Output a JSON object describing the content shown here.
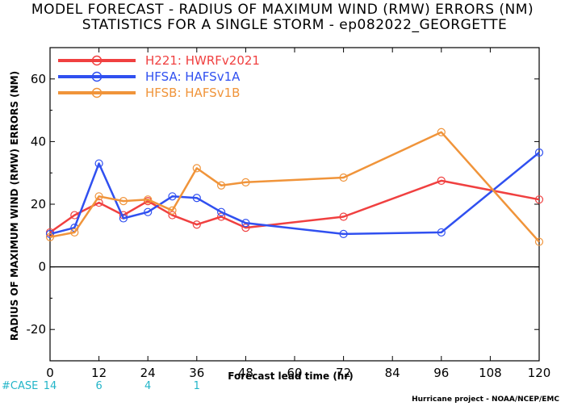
{
  "chart_data": {
    "type": "line",
    "title": "MODEL FORECAST - RADIUS OF MAXIMUM WIND (RMW) ERRORS (NM)",
    "subtitle": "STATISTICS FOR A SINGLE STORM - ep082022_GEORGETTE",
    "xlabel": "Forecast lead time (hr)",
    "ylabel": "RADIUS OF MAXIMUM WIND (RMW) ERRORS (NM)",
    "xlim": [
      0,
      120
    ],
    "ylim": [
      -30,
      70
    ],
    "xticks": [
      0,
      12,
      24,
      36,
      48,
      60,
      72,
      84,
      96,
      108,
      120
    ],
    "yticks": [
      -20,
      0,
      20,
      40,
      60
    ],
    "legend_position": "top-left",
    "grid": false,
    "series": [
      {
        "name": "H221: HWRFv2021",
        "color": "#f04040",
        "points": [
          [
            0,
            11
          ],
          [
            6,
            16.5
          ],
          [
            12,
            20.5
          ],
          [
            18,
            16.5
          ],
          [
            24,
            21
          ],
          [
            30,
            16.5
          ],
          [
            36,
            13.5
          ],
          [
            42,
            16
          ],
          [
            48,
            12.5
          ],
          [
            72,
            16
          ],
          [
            96,
            27.5
          ],
          [
            120,
            21.5
          ]
        ]
      },
      {
        "name": "HFSA: HAFSv1A",
        "color": "#3050f0",
        "points": [
          [
            0,
            10.5
          ],
          [
            6,
            12.5
          ],
          [
            12,
            33
          ],
          [
            18,
            15.5
          ],
          [
            24,
            17.5
          ],
          [
            30,
            22.5
          ],
          [
            36,
            22
          ],
          [
            42,
            17.5
          ],
          [
            48,
            14
          ],
          [
            72,
            10.5
          ],
          [
            96,
            11
          ],
          [
            120,
            36.5
          ]
        ]
      },
      {
        "name": "HFSB: HAFSv1B",
        "color": "#f0943a",
        "points": [
          [
            0,
            9.5
          ],
          [
            6,
            11
          ],
          [
            12,
            22.5
          ],
          [
            18,
            21
          ],
          [
            24,
            21.5
          ],
          [
            30,
            18
          ],
          [
            36,
            31.5
          ],
          [
            42,
            26
          ],
          [
            48,
            27
          ],
          [
            72,
            28.5
          ],
          [
            96,
            43
          ],
          [
            120,
            8
          ]
        ]
      }
    ],
    "case_label": "#CASE",
    "case_counts": [
      {
        "x": 0,
        "label": "14"
      },
      {
        "x": 12,
        "label": "6"
      },
      {
        "x": 24,
        "label": "4"
      },
      {
        "x": 36,
        "label": "1"
      }
    ],
    "credit": "Hurricane project - NOAA/NCEP/EMC"
  }
}
